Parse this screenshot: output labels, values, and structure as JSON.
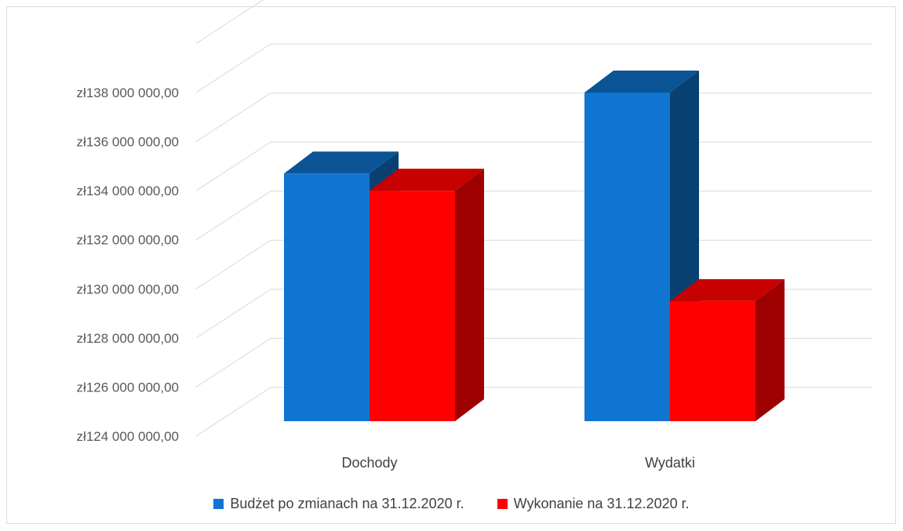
{
  "chart_data": {
    "type": "bar",
    "title": "",
    "xlabel": "",
    "ylabel": "",
    "categories": [
      "Dochody",
      "Wydatki"
    ],
    "series": [
      {
        "name": "Budżet po zmianach na 31.12.2020 r.",
        "values": [
          134700000,
          138000000
        ],
        "color": "#0f75d0"
      },
      {
        "name": "Wykonanie na 31.12.2020 r.",
        "values": [
          134000000,
          129500000
        ],
        "color": "#ff0000"
      }
    ],
    "ylim": [
      124000000,
      138000000
    ],
    "y_ticks": [
      {
        "value": 124000000,
        "label": "zł124 000 000,00"
      },
      {
        "value": 126000000,
        "label": "zł126 000 000,00"
      },
      {
        "value": 128000000,
        "label": "zł128 000 000,00"
      },
      {
        "value": 130000000,
        "label": "zł130 000 000,00"
      },
      {
        "value": 132000000,
        "label": "zł132 000 000,00"
      },
      {
        "value": 134000000,
        "label": "zł134 000 000,00"
      },
      {
        "value": 136000000,
        "label": "zł136 000 000,00"
      },
      {
        "value": 138000000,
        "label": "zł138 000 000,00"
      }
    ],
    "grid": true,
    "style_3d": true,
    "legend_position": "bottom"
  }
}
